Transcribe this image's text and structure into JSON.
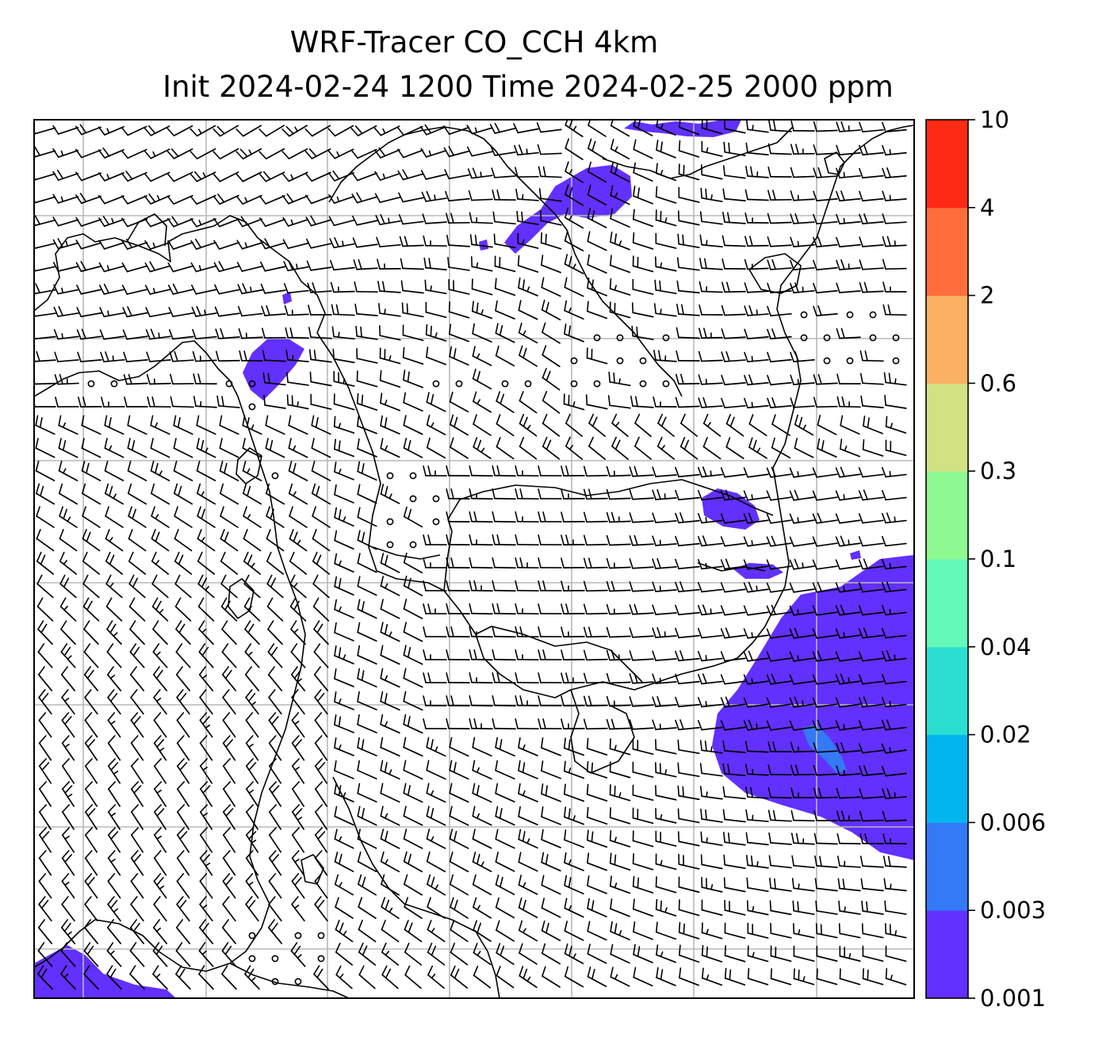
{
  "map": {
    "title_line1": "WRF-Tracer CO_CCH 4km",
    "title_line2": "Init 2024-02-24 1200 Time 2024-02-25 2000 ppm"
  },
  "colorbar": {
    "levels": [
      "0.001",
      "0.003",
      "0.006",
      "0.02",
      "0.04",
      "0.1",
      "0.3",
      "0.6",
      "2",
      "4",
      "10"
    ],
    "colors": [
      "#6230FF",
      "#3479F6",
      "#00B4EE",
      "#2ADFD2",
      "#64F9B6",
      "#8EF893",
      "#D2E283",
      "#FCB063",
      "#FF6E3A",
      "#FF2A14"
    ]
  },
  "chart_data": {
    "type": "heatmap",
    "title": "WRF-Tracer CO_CCH 4km",
    "subtitle": "Init 2024-02-24 1200 Time 2024-02-25 2000 ppm",
    "colorbar_ticks": [
      "0.001",
      "0.003",
      "0.006",
      "0.02",
      "0.04",
      "0.1",
      "0.3",
      "0.6",
      "2",
      "4",
      "10"
    ],
    "grid": true,
    "overlay": "wind barbs",
    "dominant_field_level": "0.001-0.003"
  }
}
